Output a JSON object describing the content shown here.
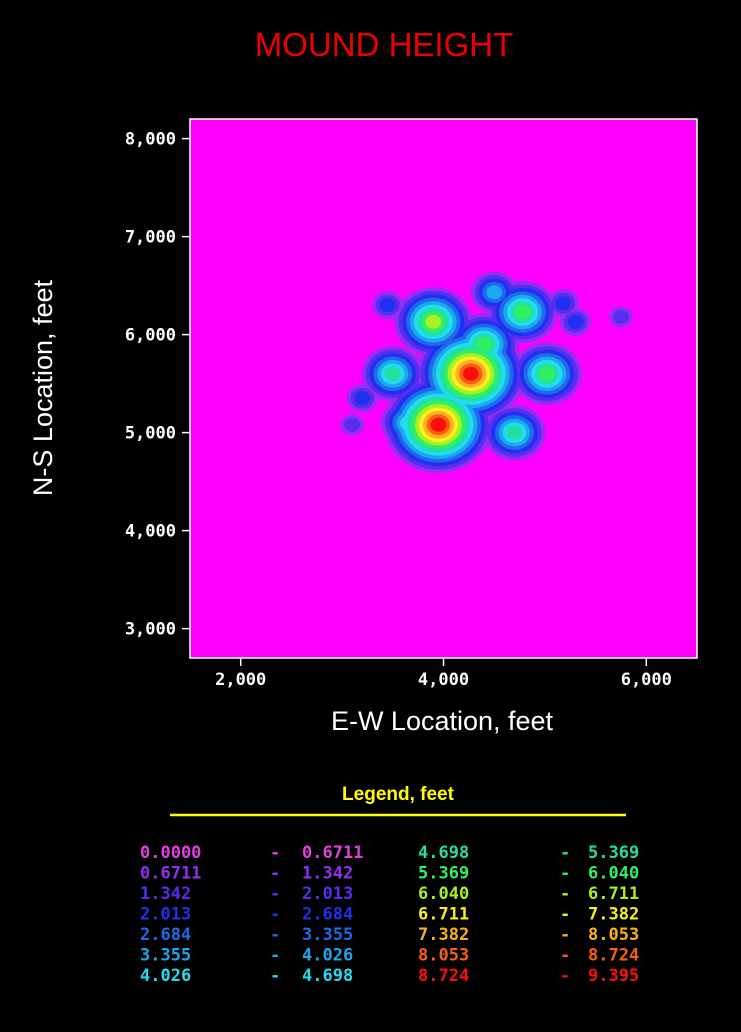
{
  "chart_data": {
    "type": "heatmap",
    "title": "MOUND HEIGHT",
    "xlabel": "E-W Location, feet",
    "ylabel": "N-S Location, feet",
    "xlim": [
      1500,
      6500
    ],
    "ylim": [
      2700,
      8200
    ],
    "x_ticks": [
      2000,
      4000,
      6000
    ],
    "x_tick_labels": [
      "2,000",
      "4,000",
      "6,000"
    ],
    "y_ticks": [
      3000,
      4000,
      5000,
      6000,
      7000,
      8000
    ],
    "y_tick_labels": [
      "3,000",
      "4,000",
      "5,000",
      "6,000",
      "7,000",
      "8,000"
    ],
    "background_color": "#ff00ff",
    "legend": {
      "title": "Legend, feet",
      "title_color": "#ffff00",
      "placement": "bottom",
      "entries": [
        {
          "from": "0.0000",
          "to": "0.6711",
          "color": "#e040e0"
        },
        {
          "from": "0.6711",
          "to": "1.342",
          "color": "#9030f0"
        },
        {
          "from": "1.342",
          "to": "2.013",
          "color": "#5a2cf0"
        },
        {
          "from": "2.013",
          "to": "2.684",
          "color": "#2030f0"
        },
        {
          "from": "2.684",
          "to": "3.355",
          "color": "#1f6ae8"
        },
        {
          "from": "3.355",
          "to": "4.026",
          "color": "#1aa8f0"
        },
        {
          "from": "4.026",
          "to": "4.698",
          "color": "#22dcf0"
        },
        {
          "from": "4.698",
          "to": "5.369",
          "color": "#22e0a0"
        },
        {
          "from": "5.369",
          "to": "6.040",
          "color": "#30f060"
        },
        {
          "from": "6.040",
          "to": "6.711",
          "color": "#a8f020"
        },
        {
          "from": "6.711",
          "to": "7.382",
          "color": "#f8f020"
        },
        {
          "from": "7.382",
          "to": "8.053",
          "color": "#f8b020"
        },
        {
          "from": "8.053",
          "to": "8.724",
          "color": "#f86010"
        },
        {
          "from": "8.724",
          "to": "9.395",
          "color": "#f81010"
        }
      ]
    },
    "peaks": [
      {
        "x": 3950,
        "y": 5080,
        "height": 9.2
      },
      {
        "x": 4270,
        "y": 5600,
        "height": 9.3
      },
      {
        "x": 4400,
        "y": 5900,
        "height": 6.0
      },
      {
        "x": 4780,
        "y": 6230,
        "height": 5.4
      },
      {
        "x": 3900,
        "y": 6130,
        "height": 6.7
      },
      {
        "x": 3500,
        "y": 5600,
        "height": 5.3
      },
      {
        "x": 3650,
        "y": 5100,
        "height": 4.2
      },
      {
        "x": 4700,
        "y": 5000,
        "height": 4.8
      },
      {
        "x": 5020,
        "y": 5600,
        "height": 5.9
      },
      {
        "x": 4500,
        "y": 6430,
        "height": 3.8
      },
      {
        "x": 3450,
        "y": 6300,
        "height": 2.4
      },
      {
        "x": 5180,
        "y": 6320,
        "height": 2.4
      },
      {
        "x": 5300,
        "y": 6130,
        "height": 2.4
      },
      {
        "x": 5750,
        "y": 6180,
        "height": 1.8
      },
      {
        "x": 3200,
        "y": 5350,
        "height": 2.6
      },
      {
        "x": 3100,
        "y": 5080,
        "height": 1.5
      },
      {
        "x": 4150,
        "y": 4850,
        "height": 3.0
      }
    ]
  }
}
